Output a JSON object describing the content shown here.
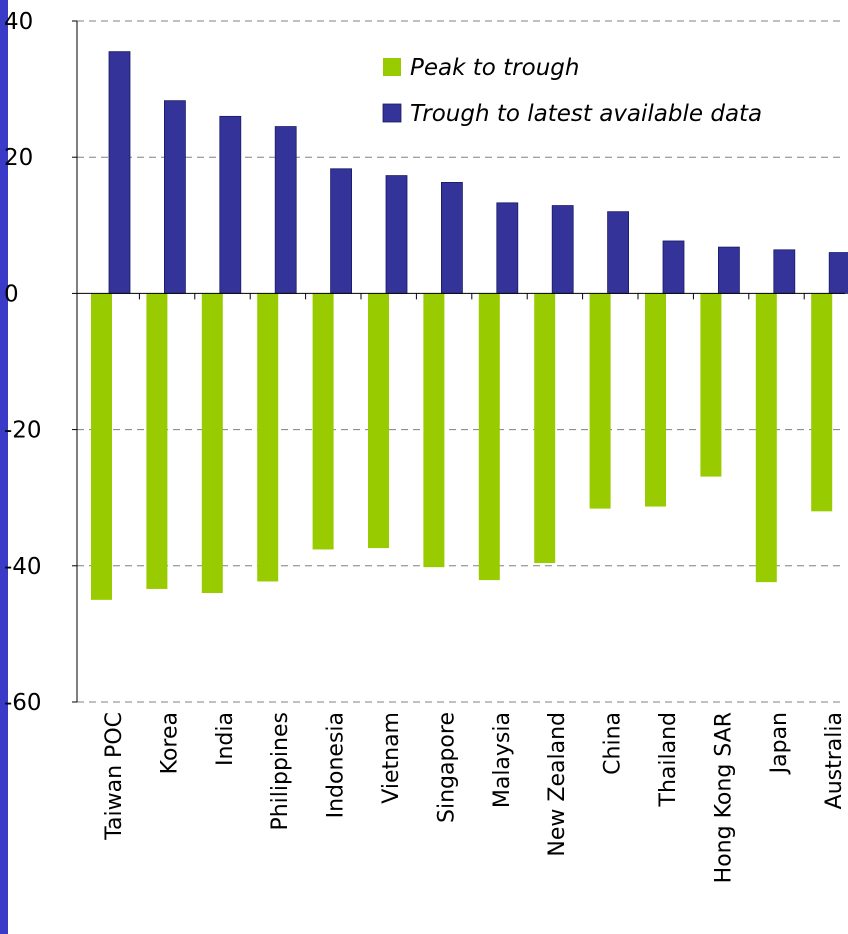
{
  "colors": {
    "peak": "#99cc00",
    "trough": "#333399",
    "frame": "#3a3ac8",
    "grid": "#808080"
  },
  "chart_data": {
    "type": "bar",
    "title": "",
    "xlabel": "",
    "ylabel": "",
    "ylim": [
      -60,
      40
    ],
    "yticks": [
      40,
      20,
      0,
      -20,
      -40,
      -60
    ],
    "grid": true,
    "legend_position": "top-right",
    "categories": [
      "Taiwan POC",
      "Korea",
      "India",
      "Philippines",
      "Indonesia",
      "Vietnam",
      "Singapore",
      "Malaysia",
      "New Zealand",
      "China",
      "Thailand",
      "Hong Kong SAR",
      "Japan",
      "Australia"
    ],
    "series": [
      {
        "name": "Peak to trough",
        "values": [
          -45,
          -43.4,
          -44,
          -42.3,
          -37.6,
          -37.4,
          -40.2,
          -42.1,
          -39.6,
          -31.6,
          -31.3,
          -26.9,
          -42.4,
          -32
        ]
      },
      {
        "name": "Trough to latest available data",
        "values": [
          35.5,
          28.3,
          26,
          24.5,
          18.3,
          17.3,
          16.3,
          13.3,
          12.9,
          12,
          7.7,
          6.8,
          6.4,
          6
        ]
      }
    ]
  }
}
